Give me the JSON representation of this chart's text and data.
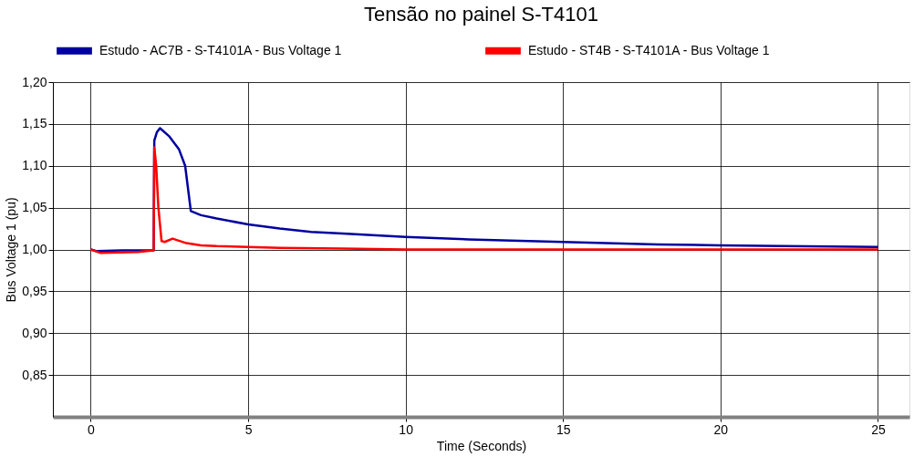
{
  "chart_data": {
    "type": "line",
    "title": "Tensão no painel S-T4101",
    "xlabel": "Time (Seconds)",
    "ylabel": "Bus Voltage 1 (pu)",
    "xlim": [
      -1.2,
      26
    ],
    "xticks": [
      0,
      5,
      10,
      15,
      20,
      25
    ],
    "ylim": [
      0.8,
      1.2
    ],
    "yticks": [
      {
        "value": 0.85,
        "label": "0,85"
      },
      {
        "value": 0.9,
        "label": "0,90"
      },
      {
        "value": 0.95,
        "label": "0,95"
      },
      {
        "value": 1.0,
        "label": "1,00"
      },
      {
        "value": 1.05,
        "label": "1,05"
      },
      {
        "value": 1.1,
        "label": "1,10"
      },
      {
        "value": 1.15,
        "label": "1,15"
      },
      {
        "value": 1.2,
        "label": "1,20"
      }
    ],
    "grid": true,
    "legend": "top",
    "marker": "none",
    "line_style": "solid",
    "series": [
      {
        "name": "Estudo - AC7B - S-T4101A - Bus Voltage 1",
        "color": "#0000a0",
        "x": [
          0,
          0.2,
          1.0,
          2.0,
          2.02,
          2.1,
          2.2,
          2.5,
          2.8,
          3.0,
          3.18,
          3.5,
          4,
          5,
          6,
          7,
          8,
          10,
          12,
          15,
          18,
          20,
          22,
          25
        ],
        "values": [
          1.0,
          0.998,
          0.999,
          0.999,
          1.13,
          1.14,
          1.145,
          1.135,
          1.12,
          1.1,
          1.046,
          1.041,
          1.037,
          1.03,
          1.025,
          1.021,
          1.019,
          1.015,
          1.012,
          1.009,
          1.006,
          1.005,
          1.004,
          1.003
        ]
      },
      {
        "name": "Estudo - ST4B - S-T4101A - Bus Voltage 1",
        "color": "#ff0000",
        "x": [
          0,
          0.3,
          1.5,
          2.0,
          2.02,
          2.08,
          2.15,
          2.25,
          2.35,
          2.6,
          3.0,
          3.5,
          4,
          5,
          6,
          8,
          10,
          15,
          20,
          25
        ],
        "values": [
          1.0,
          0.996,
          0.997,
          0.999,
          1.122,
          1.1,
          1.05,
          1.01,
          1.009,
          1.013,
          1.008,
          1.005,
          1.004,
          1.003,
          1.002,
          1.001,
          1.0,
          1.0,
          1.0,
          1.0
        ]
      }
    ]
  }
}
